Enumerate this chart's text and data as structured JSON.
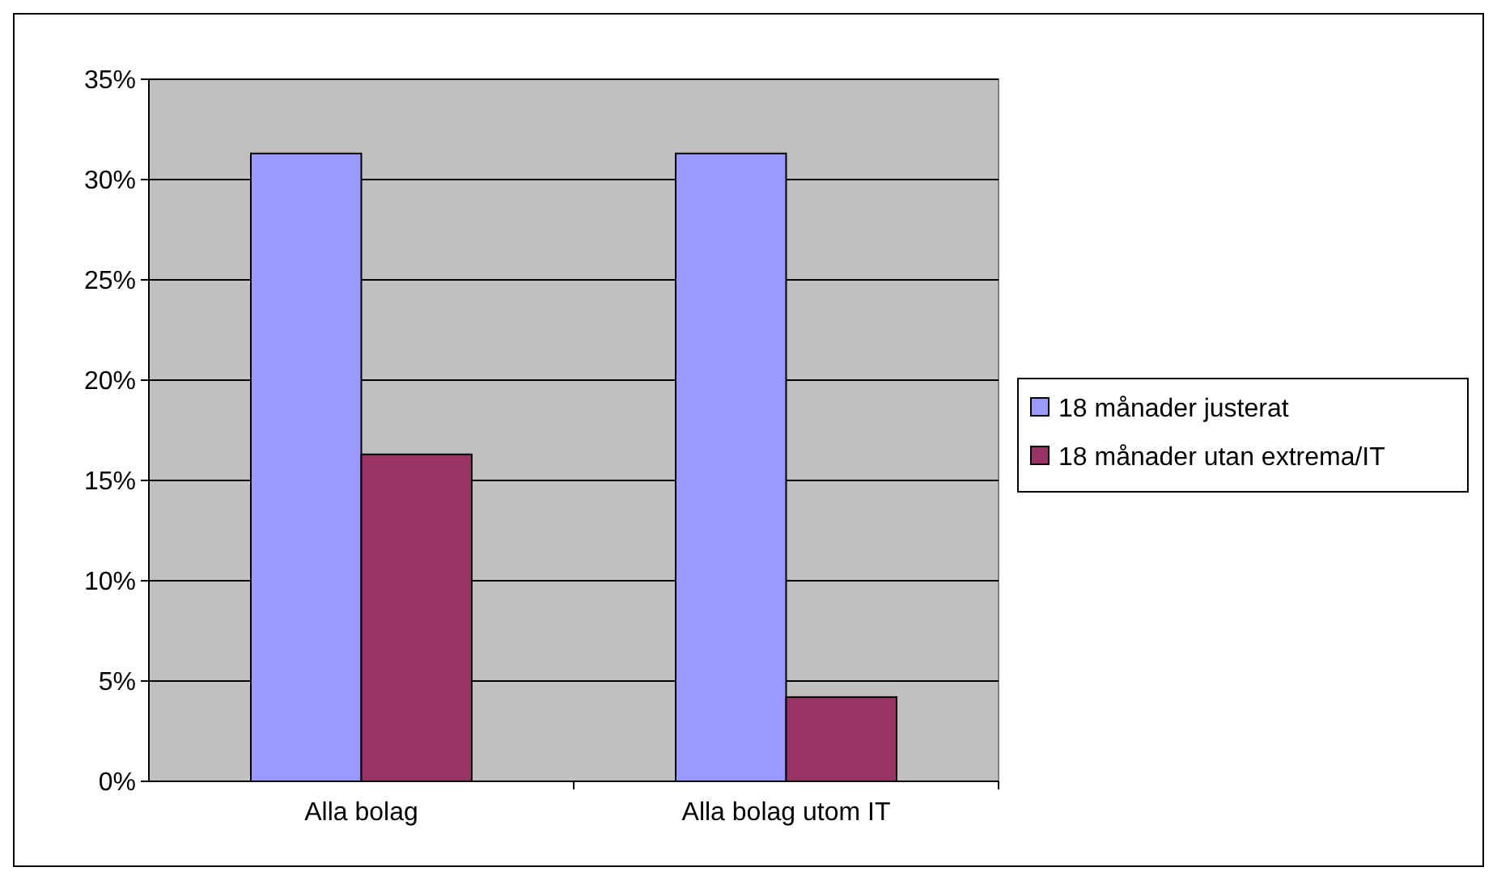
{
  "chart_data": {
    "type": "bar",
    "categories": [
      "Alla bolag",
      "Alla bolag utom IT"
    ],
    "series": [
      {
        "name": "18 månader justerat",
        "color": "#9999ff",
        "values": [
          31.3,
          31.3
        ]
      },
      {
        "name": "18 månader utan extrema/IT",
        "color": "#993366",
        "values": [
          16.3,
          4.2
        ]
      }
    ],
    "ylim": [
      0,
      35
    ],
    "yticks": [
      {
        "value": 0,
        "label": "0%"
      },
      {
        "value": 5,
        "label": "5%"
      },
      {
        "value": 10,
        "label": "10%"
      },
      {
        "value": 15,
        "label": "15%"
      },
      {
        "value": 20,
        "label": "20%"
      },
      {
        "value": 25,
        "label": "25%"
      },
      {
        "value": 30,
        "label": "30%"
      },
      {
        "value": 35,
        "label": "35%"
      }
    ],
    "grid": "y",
    "legend": "right"
  }
}
